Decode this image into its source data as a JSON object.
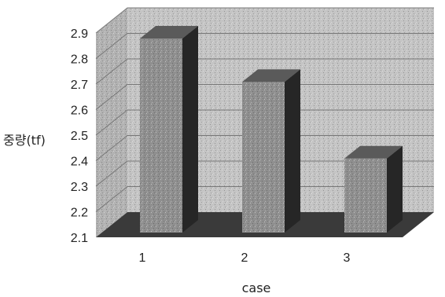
{
  "chart_data": {
    "type": "bar",
    "style": "3d",
    "categories": [
      "1",
      "2",
      "3"
    ],
    "values": [
      2.86,
      2.69,
      2.39
    ],
    "xlabel": "case",
    "ylabel": "중량(tf)",
    "ylim": [
      2.1,
      2.9
    ],
    "yticks": [
      "2.1",
      "2.2",
      "2.3",
      "2.4",
      "2.5",
      "2.6",
      "2.7",
      "2.8",
      "2.9"
    ],
    "grid": true,
    "legend": "none",
    "colors": {
      "wall": "#c4c4c4",
      "floor": "#3a3a3a",
      "bar_front": "#8f8f8f",
      "bar_top": "#5a5a5a",
      "bar_side": "#262626",
      "gridline": "#777777"
    }
  }
}
